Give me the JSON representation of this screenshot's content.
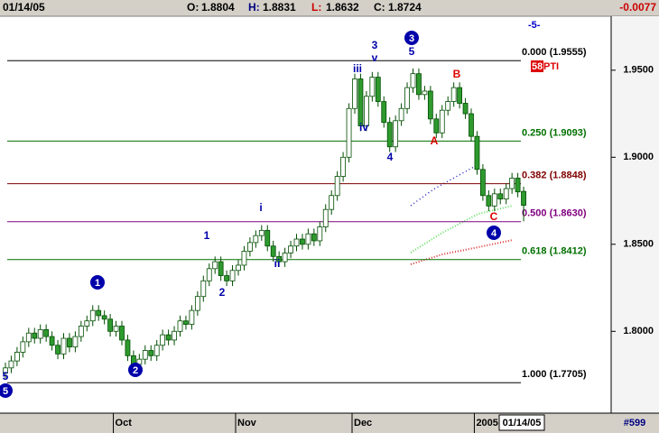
{
  "header": {
    "date": "01/14/05",
    "items": [
      {
        "label": "O:",
        "value": 1.8804,
        "color": "#000000"
      },
      {
        "label": "H:",
        "value": 1.8831,
        "color": "#000080"
      },
      {
        "label": "L:",
        "value": 1.8632,
        "color": "#cc0000"
      },
      {
        "label": "C:",
        "value": 1.8724,
        "color": "#000000"
      }
    ],
    "change": -0.0077
  },
  "chart_data": {
    "type": "candlestick",
    "categories": [
      null,
      null,
      null,
      null,
      null,
      null,
      null,
      null,
      null,
      null,
      null,
      null,
      null,
      null,
      null,
      null,
      null,
      null,
      null,
      "Oct",
      null,
      null,
      null,
      null,
      null,
      null,
      null,
      null,
      null,
      null,
      null,
      null,
      null,
      null,
      null,
      null,
      null,
      null,
      null,
      null,
      "Nov",
      null,
      null,
      null,
      null,
      null,
      null,
      null,
      null,
      null,
      null,
      null,
      null,
      null,
      null,
      null,
      null,
      null,
      null,
      null,
      "Dec",
      null,
      null,
      null,
      null,
      null,
      null,
      null,
      null,
      null,
      null,
      null,
      null,
      null,
      null,
      null,
      null,
      null,
      null,
      null,
      null,
      "2005",
      null,
      null,
      null,
      null,
      null,
      null,
      null,
      null
    ],
    "open": [
      1.776,
      1.779,
      1.783,
      1.788,
      1.794,
      1.799,
      1.796,
      1.801,
      1.797,
      1.792,
      1.787,
      1.796,
      1.791,
      1.797,
      1.803,
      1.806,
      1.812,
      1.809,
      1.807,
      1.8,
      1.803,
      1.795,
      1.786,
      1.781,
      1.784,
      1.789,
      1.786,
      1.792,
      1.798,
      1.795,
      1.8,
      1.806,
      1.804,
      1.812,
      1.82,
      1.829,
      1.836,
      1.84,
      1.832,
      1.829,
      1.835,
      1.838,
      1.846,
      1.851,
      1.855,
      1.858,
      1.849,
      1.843,
      1.84,
      1.845,
      1.849,
      1.853,
      1.85,
      1.856,
      1.852,
      1.86,
      1.87,
      1.878,
      1.889,
      1.9,
      1.928,
      1.945,
      1.918,
      1.935,
      1.946,
      1.932,
      1.92,
      1.906,
      1.921,
      1.928,
      1.94,
      1.948,
      1.936,
      1.938,
      1.922,
      1.914,
      1.927,
      1.932,
      1.94,
      1.931,
      1.925,
      1.912,
      1.893,
      1.878,
      1.872,
      1.879,
      1.876,
      1.882,
      1.888,
      1.8804
    ],
    "high": [
      1.782,
      1.786,
      1.791,
      1.797,
      1.802,
      1.802,
      1.804,
      1.804,
      1.8,
      1.795,
      1.799,
      1.799,
      1.8,
      1.806,
      1.809,
      1.815,
      1.815,
      1.812,
      1.81,
      1.806,
      1.806,
      1.798,
      1.789,
      1.787,
      1.792,
      1.792,
      1.795,
      1.801,
      1.801,
      1.803,
      1.809,
      1.809,
      1.815,
      1.823,
      1.832,
      1.839,
      1.843,
      1.843,
      1.835,
      1.838,
      1.841,
      1.849,
      1.854,
      1.858,
      1.861,
      1.861,
      1.852,
      1.846,
      1.848,
      1.852,
      1.856,
      1.856,
      1.859,
      1.859,
      1.863,
      1.873,
      1.881,
      1.892,
      1.903,
      1.931,
      1.948,
      1.948,
      1.938,
      1.949,
      1.949,
      1.935,
      1.923,
      1.924,
      1.931,
      1.943,
      1.951,
      1.951,
      1.941,
      1.941,
      1.925,
      1.93,
      1.935,
      1.943,
      1.943,
      1.934,
      1.928,
      1.915,
      1.896,
      1.881,
      1.882,
      1.882,
      1.885,
      1.891,
      1.891,
      1.8831
    ],
    "low": [
      1.773,
      1.776,
      1.78,
      1.785,
      1.791,
      1.793,
      1.793,
      1.794,
      1.789,
      1.784,
      1.784,
      1.788,
      1.788,
      1.794,
      1.8,
      1.803,
      1.806,
      1.804,
      1.797,
      1.797,
      1.792,
      1.783,
      1.778,
      1.778,
      1.781,
      1.783,
      1.783,
      1.789,
      1.792,
      1.792,
      1.797,
      1.801,
      1.801,
      1.809,
      1.817,
      1.826,
      1.833,
      1.829,
      1.826,
      1.826,
      1.832,
      1.835,
      1.843,
      1.848,
      1.852,
      1.846,
      1.84,
      1.837,
      1.837,
      1.842,
      1.846,
      1.847,
      1.847,
      1.849,
      1.849,
      1.857,
      1.867,
      1.875,
      1.886,
      1.897,
      1.925,
      1.915,
      1.915,
      1.932,
      1.929,
      1.917,
      1.903,
      1.903,
      1.918,
      1.925,
      1.937,
      1.933,
      1.933,
      1.919,
      1.911,
      1.911,
      1.924,
      1.929,
      1.928,
      1.922,
      1.909,
      1.89,
      1.875,
      1.869,
      1.869,
      1.873,
      1.873,
      1.879,
      1.877,
      1.8632
    ],
    "close": [
      1.779,
      1.783,
      1.788,
      1.794,
      1.799,
      1.796,
      1.801,
      1.797,
      1.792,
      1.787,
      1.796,
      1.791,
      1.797,
      1.803,
      1.806,
      1.812,
      1.809,
      1.807,
      1.8,
      1.803,
      1.795,
      1.786,
      1.781,
      1.784,
      1.789,
      1.786,
      1.792,
      1.798,
      1.795,
      1.8,
      1.806,
      1.804,
      1.812,
      1.82,
      1.829,
      1.836,
      1.84,
      1.832,
      1.829,
      1.835,
      1.838,
      1.846,
      1.851,
      1.855,
      1.858,
      1.849,
      1.843,
      1.84,
      1.845,
      1.849,
      1.853,
      1.85,
      1.856,
      1.852,
      1.86,
      1.87,
      1.878,
      1.889,
      1.9,
      1.928,
      1.945,
      1.918,
      1.935,
      1.946,
      1.932,
      1.92,
      1.906,
      1.921,
      1.928,
      1.94,
      1.948,
      1.936,
      1.938,
      1.922,
      1.914,
      1.927,
      1.932,
      1.94,
      1.931,
      1.925,
      1.912,
      1.893,
      1.878,
      1.872,
      1.879,
      1.876,
      1.882,
      1.888,
      1.8801,
      1.8724
    ],
    "up_color": "#ffffff",
    "down_color": "#2e9a2e",
    "wick_color": "#004d00",
    "ylim": [
      1.753,
      1.981
    ],
    "yticks": [
      {
        "value": 1.8,
        "label": "1.8000"
      },
      {
        "value": 1.85,
        "label": "1.8500"
      },
      {
        "value": 1.9,
        "label": "1.9000"
      },
      {
        "value": 1.95,
        "label": "1.9500"
      }
    ],
    "fib_levels": [
      {
        "label": "0.000 (1.9555)",
        "value": 1.9555,
        "color": "#000000"
      },
      {
        "label": "0.250 (1.9093)",
        "value": 1.9093,
        "color": "#007000"
      },
      {
        "label": "0.382 (1.8848)",
        "value": 1.8848,
        "color": "#800000"
      },
      {
        "label": "0.500 (1.8630)",
        "value": 1.863,
        "color": "#800080"
      },
      {
        "label": "0.618 (1.8412)",
        "value": 1.8412,
        "color": "#007000"
      },
      {
        "label": "1.000 (1.7705)",
        "value": 1.7705,
        "color": "#000000"
      }
    ],
    "wave_labels": [
      {
        "text": "5",
        "color": "#0000aa",
        "circled": false
      },
      {
        "text": "5",
        "color": "#0000aa",
        "circled": true
      },
      {
        "text": "1",
        "color": "#0000aa",
        "circled": true
      },
      {
        "text": "2",
        "color": "#0000aa",
        "circled": true
      },
      {
        "text": "1",
        "color": "#0000aa",
        "circled": false
      },
      {
        "text": "2",
        "color": "#0000aa",
        "circled": false
      },
      {
        "text": "i",
        "color": "#0000aa",
        "circled": false
      },
      {
        "text": "ii",
        "color": "#0000aa",
        "circled": false
      },
      {
        "text": "iii",
        "color": "#0000aa",
        "circled": false
      },
      {
        "text": "iv",
        "color": "#0000aa",
        "circled": false
      },
      {
        "text": "3",
        "color": "#0000aa",
        "circled": false
      },
      {
        "text": "v",
        "color": "#0000aa",
        "circled": false
      },
      {
        "text": "3",
        "color": "#0000aa",
        "circled": true
      },
      {
        "text": "5",
        "color": "#0000aa",
        "circled": false
      },
      {
        "text": "4",
        "color": "#0000aa",
        "circled": false
      },
      {
        "text": "A",
        "color": "#dd0000",
        "circled": false
      },
      {
        "text": "B",
        "color": "#dd0000",
        "circled": false
      },
      {
        "text": "C",
        "color": "#dd0000",
        "circled": false
      },
      {
        "text": "4",
        "color": "#0000aa",
        "circled": true
      }
    ],
    "cycle_label": "-5-",
    "pti_value": "58",
    "pti_text": "PTI",
    "date_box": "01/14/05",
    "bar_count_label": "#599"
  }
}
